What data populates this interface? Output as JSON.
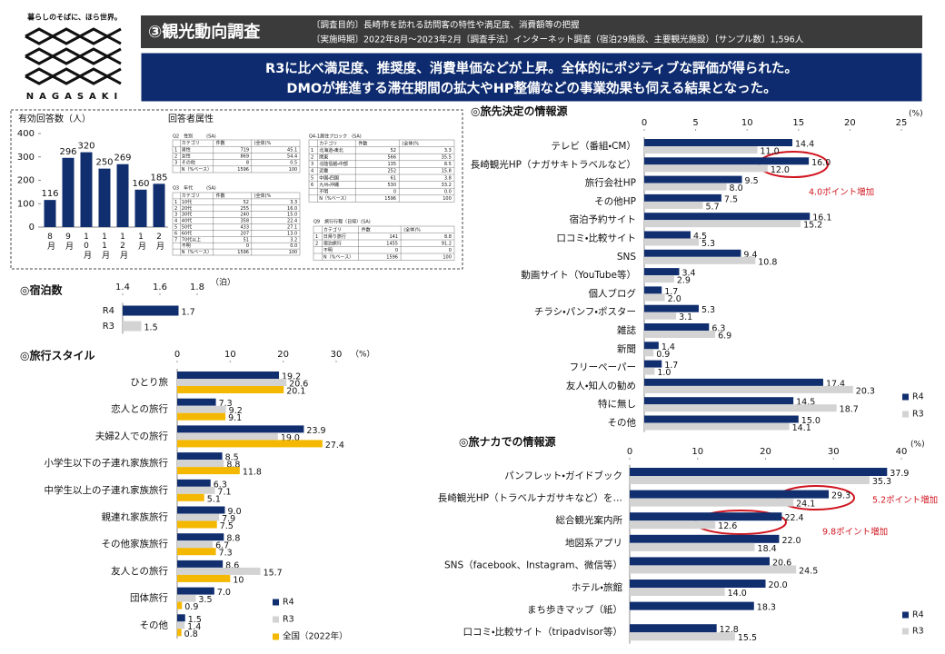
{
  "header": {
    "tagline": "暮らしのそばに、ほら世界。",
    "logo_text": "NAGASAKI",
    "title": "③観光動向調査",
    "purpose": "〔調査目的〕長崎市を訪れる訪問客の特性や満足度、消費額等の把握",
    "method": "〔実施時期〕2022年8月～2023年2月〔調査手法〕インターネット調査（宿泊29施設、主要観光施設）〔サンプル数〕1,596人"
  },
  "summary": [
    "R3に比べ満足度、推奨度、消費単価などが上昇。全体的にポジティブな評価が得られた。",
    "DMOが推進する滞在期間の拡大やHP整備などの事業効果も伺える結果となった。"
  ],
  "attributes": {
    "title": "回答者属性",
    "tables": [
      {
        "title": "Q2　性別　　　(SA)",
        "header": [
          "カテゴリ",
          "件数",
          "(全体)%"
        ],
        "rows": [
          [
            "1",
            "男性",
            "719",
            "45.1"
          ],
          [
            "2",
            "女性",
            "869",
            "54.4"
          ],
          [
            "3",
            "その他",
            "8",
            "0.5"
          ],
          [
            "N（%ベース）",
            "1596",
            "100"
          ]
        ]
      },
      {
        "title": "Q3　年代　　　(SA)",
        "header": [
          "カテゴリ",
          "件数",
          "(全体)%"
        ],
        "rows": [
          [
            "1",
            "10代",
            "52",
            "3.3"
          ],
          [
            "2",
            "20代",
            "255",
            "16.0"
          ],
          [
            "3",
            "30代",
            "240",
            "15.0"
          ],
          [
            "4",
            "40代",
            "358",
            "22.4"
          ],
          [
            "5",
            "50代",
            "433",
            "27.1"
          ],
          [
            "6",
            "60代",
            "207",
            "13.0"
          ],
          [
            "7",
            "70代以上",
            "51",
            "3.2"
          ],
          [
            "不明",
            "0",
            "0.0"
          ],
          [
            "N（%ベース）",
            "1596",
            "100"
          ]
        ]
      },
      {
        "title": "Q4-1居住ブロック　(SA)",
        "header": [
          "カテゴリ",
          "件数",
          "(全体)%"
        ],
        "rows": [
          [
            "1",
            "北海道・東北",
            "52",
            "3.3"
          ],
          [
            "2",
            "関東",
            "566",
            "35.5"
          ],
          [
            "3",
            "北陸信越・中部",
            "135",
            "8.5"
          ],
          [
            "4",
            "近畿",
            "252",
            "15.8"
          ],
          [
            "5",
            "中国・四国",
            "61",
            "3.8"
          ],
          [
            "6",
            "九州・沖縄",
            "530",
            "33.2"
          ],
          [
            "不明",
            "0",
            "0.0"
          ],
          [
            "N（%ベース）",
            "1596",
            "100"
          ]
        ]
      },
      {
        "title": "Q9　旅行行程（日帰）(SA)",
        "header": [
          "カテゴリ",
          "件数",
          "(全体)%"
        ],
        "rows": [
          [
            "1",
            "日帰り旅行",
            "141",
            "8.8"
          ],
          [
            "2",
            "宿泊旅行",
            "1455",
            "91.2"
          ],
          [
            "不明",
            "0",
            "0"
          ],
          [
            "N（%ベース）",
            "1596",
            "100"
          ]
        ]
      }
    ]
  },
  "chart_data": [
    {
      "type": "bar",
      "title": "有効回答数（人）",
      "categories": [
        "8月",
        "9月",
        "10月",
        "11月",
        "12月",
        "1月",
        "2月"
      ],
      "values": [
        116,
        296,
        320,
        250,
        269,
        160,
        185
      ],
      "color": "#112f6f",
      "ylim": [
        0,
        400
      ],
      "yticks": [
        0,
        100,
        200,
        300,
        400
      ]
    },
    {
      "type": "bar",
      "horizontal": true,
      "title": "◎宿泊数",
      "x_unit": "（泊）",
      "categories": [
        "R4",
        "R3"
      ],
      "values": [
        1.7,
        1.5
      ],
      "colors": [
        "#112f6f",
        "#d3d3d3"
      ],
      "xlim": [
        1.4,
        1.8
      ],
      "xticks": [
        1.4,
        1.6,
        1.8
      ]
    },
    {
      "type": "bar",
      "horizontal": true,
      "title": "◎旅行スタイル",
      "x_unit": "（%）",
      "categories": [
        "ひとり旅",
        "恋人との旅行",
        "夫婦2人での旅行",
        "小学生以下の子連れ家族旅行",
        "中学生以上の子連れ家族旅行",
        "親連れ家族旅行",
        "その他家族旅行",
        "友人との旅行",
        "団体旅行",
        "その他"
      ],
      "series": [
        {
          "name": "R4",
          "color": "#112f6f",
          "values": [
            19.2,
            7.3,
            23.9,
            8.5,
            6.3,
            9.0,
            8.8,
            8.6,
            7.0,
            1.5
          ],
          "value_labels": [
            "19.2",
            "7.3",
            "23.9",
            "8.5",
            "6.3",
            "9.0",
            "8.8",
            "8.6",
            "7.0",
            "1.5"
          ]
        },
        {
          "name": "R3",
          "color": "#d3d3d3",
          "values": [
            20.6,
            9.2,
            19.0,
            8.8,
            7.1,
            7.9,
            6.7,
            15.7,
            3.5,
            1.4
          ],
          "value_labels": [
            "20.6",
            "9.2",
            "19.0",
            "8.8",
            "7.1",
            "7.9",
            "6.7",
            "15.7",
            "3.5",
            "1.4"
          ]
        },
        {
          "name": "全国（2022年）",
          "color": "#f5b800",
          "values": [
            20.1,
            9.1,
            27.4,
            11.8,
            5.1,
            7.5,
            7.3,
            10,
            0.9,
            0.8
          ],
          "value_labels": [
            "20.1",
            "9.1",
            "27.4",
            "11.8",
            "5.1",
            "7.5",
            "7.3",
            "10",
            "0.9",
            "0.8"
          ]
        }
      ],
      "xlim": [
        0,
        30
      ],
      "xticks": [
        0,
        10,
        20,
        30
      ]
    },
    {
      "type": "bar",
      "horizontal": true,
      "title": "◎旅先決定の情報源",
      "x_unit": "(%)",
      "categories": [
        "テレビ（番組・CM）",
        "長崎観光HP（ナガサキトラベルなど）",
        "旅行会社HP",
        "その他HP",
        "宿泊予約サイト",
        "口コミ・比較サイト",
        "SNS",
        "動画サイト（YouTube等）",
        "個人ブログ",
        "チラシ・パンフ・ポスター",
        "雑誌",
        "新聞",
        "フリーペーパー",
        "友人・知人の勧め",
        "特に無し",
        "その他"
      ],
      "series": [
        {
          "name": "R4",
          "color": "#112f6f",
          "values": [
            14.4,
            16.0,
            9.5,
            7.5,
            16.1,
            4.5,
            9.4,
            3.4,
            1.7,
            5.3,
            6.3,
            1.4,
            1.7,
            17.4,
            14.5,
            15.0
          ],
          "value_labels": [
            "14.4",
            "16.0",
            "9.5",
            "7.5",
            "16.1",
            "4.5",
            "9.4",
            "3.4",
            "1.7",
            "5.3",
            "6.3",
            "1.4",
            "1.7",
            "17.4",
            "14.5",
            "15.0"
          ]
        },
        {
          "name": "R3",
          "color": "#d3d3d3",
          "values": [
            11.0,
            12.0,
            8.0,
            5.7,
            15.2,
            5.3,
            10.8,
            2.9,
            2.0,
            3.1,
            6.9,
            0.9,
            1.0,
            20.3,
            18.7,
            14.1
          ],
          "value_labels": [
            "11.0",
            "12.0",
            "8.0",
            "5.7",
            "15.2",
            "5.3",
            "10.8",
            "2.9",
            "2.0",
            "3.1",
            "6.9",
            "0.9",
            "1.0",
            "20.3",
            "18.7",
            "14.1"
          ]
        }
      ],
      "xlim": [
        0,
        25
      ],
      "xticks": [
        0,
        5,
        10,
        15,
        20,
        25
      ],
      "annotations": [
        "4.0ポイント増加"
      ]
    },
    {
      "type": "bar",
      "horizontal": true,
      "title": "◎旅ナカでの情報源",
      "x_unit": "(%)",
      "categories": [
        "パンフレット・ガイドブック",
        "長崎観光HP（トラベルナガサキなど）を…",
        "総合観光案内所",
        "地図系アプリ",
        "SNS（facebook、Instagram、微信等）",
        "ホテル・旅館",
        "まち歩きマップ（紙）",
        "口コミ・比較サイト（tripadvisor等）"
      ],
      "series": [
        {
          "name": "R4",
          "color": "#112f6f",
          "values": [
            37.9,
            29.3,
            22.4,
            22.0,
            20.6,
            20.0,
            18.3,
            12.8
          ],
          "value_labels": [
            "37.9",
            "29.3",
            "22.4",
            "22.0",
            "20.6",
            "20.0",
            "18.3",
            "12.8"
          ]
        },
        {
          "name": "R3",
          "color": "#d3d3d3",
          "values": [
            35.3,
            24.1,
            12.6,
            18.4,
            24.5,
            14.0,
            null,
            15.5
          ],
          "value_labels": [
            "35.3",
            "24.1",
            "12.6",
            "18.4",
            "24.5",
            "14.0",
            null,
            "15.5"
          ]
        }
      ],
      "xlim": [
        0,
        40
      ],
      "xticks": [
        0,
        10,
        20,
        30,
        40
      ],
      "annotations": [
        "5.2ポイント増加",
        "9.8ポイント増加"
      ]
    }
  ]
}
